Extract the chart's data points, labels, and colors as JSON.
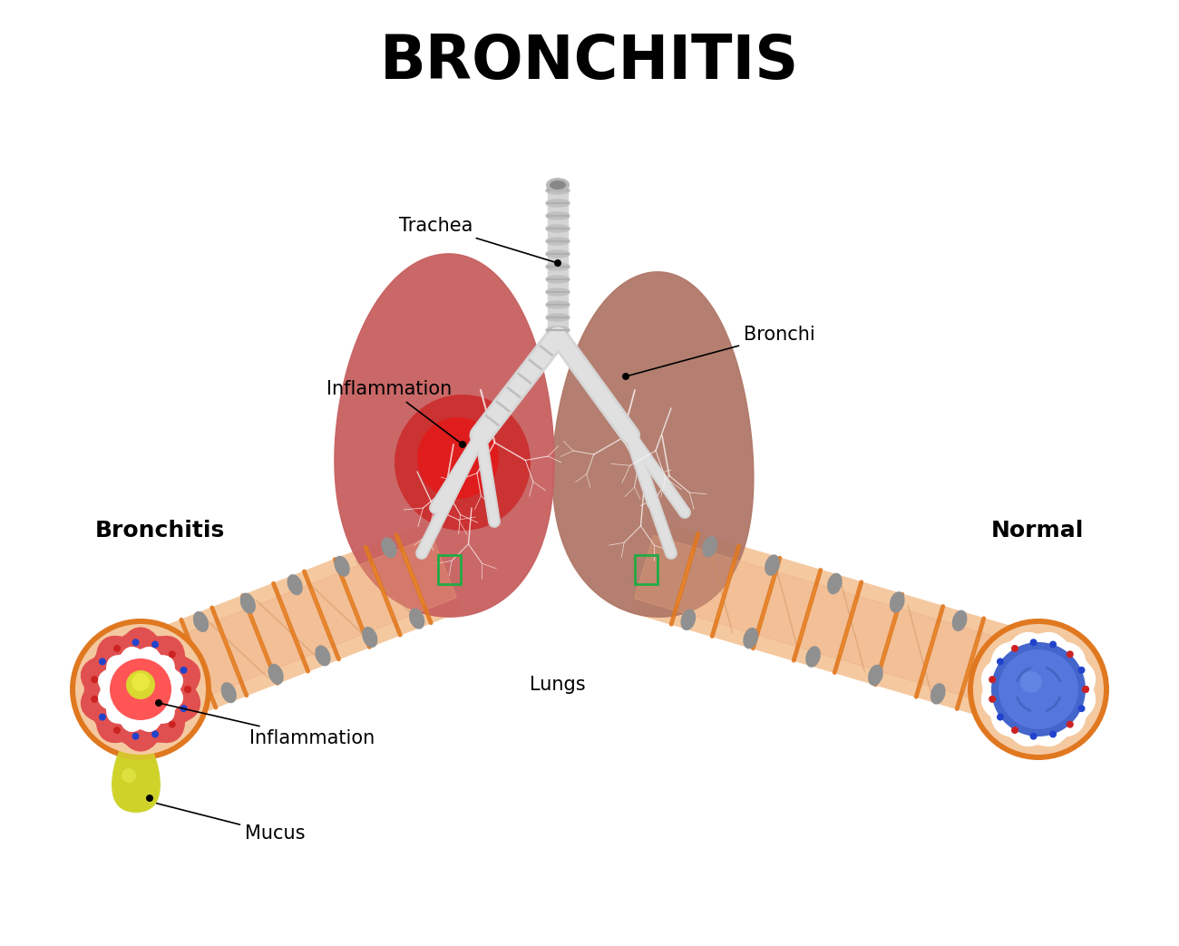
{
  "title": "BRONCHITIS",
  "title_fontsize": 48,
  "title_fontweight": "bold",
  "background_color": "#ffffff",
  "labels": {
    "trachea": "Trachea",
    "bronchi": "Bronchi",
    "inflammation_upper": "Inflammation",
    "lungs": "Lungs",
    "bronchitis": "Bronchitis",
    "normal": "Normal",
    "inflammation_lower": "Inflammation",
    "mucus": "Mucus"
  },
  "label_fontsize": 15,
  "lung_left_color": "#cc5555",
  "lung_right_color": "#b07060",
  "trachea_color": "#d8d8d8",
  "tube_outer_color": "#f5c9a0",
  "tube_ring_color": "#e07820",
  "tube_node_color": "#9090a0",
  "green_beam_color": "#c8f0d0",
  "annotation_color": "#000000"
}
